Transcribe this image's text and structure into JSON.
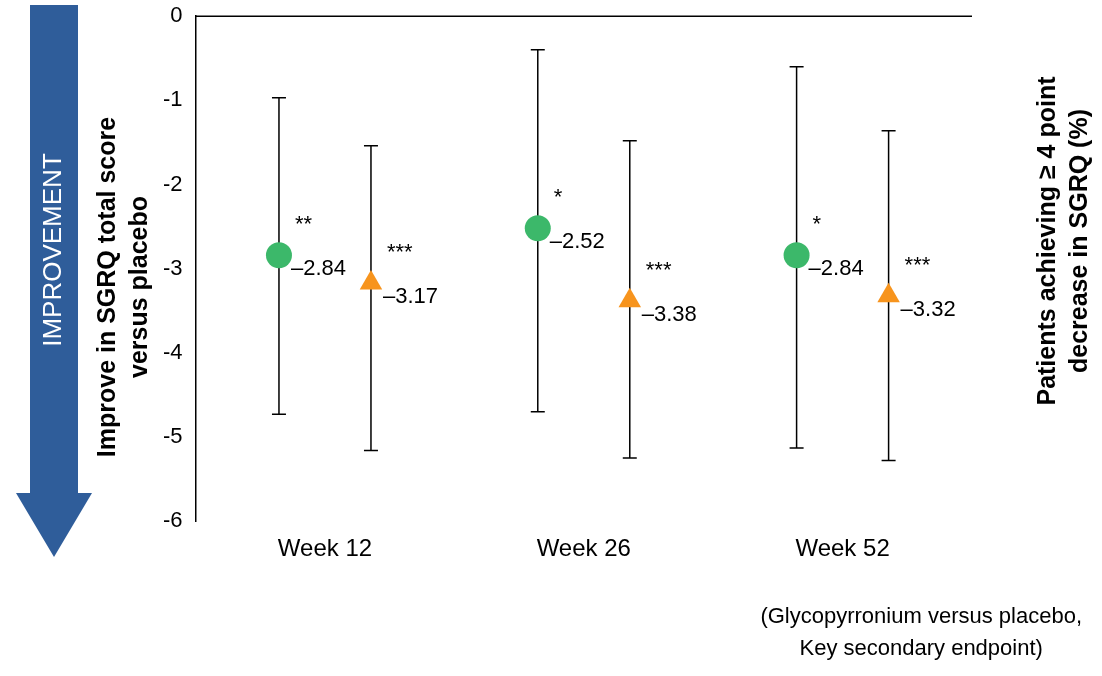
{
  "chart_data": {
    "type": "scatter",
    "ylabel": "Improve in SGRQ total score versus placebo",
    "y2label": "Patients achieving ≥ 4 point decrease in SGRQ (%)",
    "categories": [
      "Week 12",
      "Week 26",
      "Week 52"
    ],
    "series": [
      {
        "marker": "circle",
        "color": "#3cb86a",
        "values": [
          -2.84,
          -2.52,
          -2.84
        ],
        "errors": [
          [
            -4.73,
            -0.97
          ],
          [
            -4.7,
            -0.4
          ],
          [
            -5.13,
            -0.6
          ]
        ],
        "value_labels": [
          "–2.84",
          "–2.52",
          "–2.84"
        ]
      },
      {
        "marker": "triangle",
        "color": "#f7941d",
        "values": [
          -3.17,
          -3.38,
          -3.32
        ],
        "errors": [
          [
            -5.16,
            -1.54
          ],
          [
            -5.25,
            -1.48
          ],
          [
            -5.28,
            -1.36
          ]
        ],
        "value_labels": [
          "–3.17",
          "–3.38",
          "–3.32"
        ]
      }
    ],
    "ylim": [
      -6,
      0
    ],
    "yticks": [
      -6,
      -5,
      -4,
      -3,
      -2,
      -1,
      0
    ],
    "grid": false,
    "legend": false,
    "annotations": [
      "**",
      "***",
      "*",
      "***",
      "*",
      "***",
      "IMPROVEMENT",
      "(Glycopyrronium versus placebo,\nKey secondary endpoint)"
    ]
  }
}
